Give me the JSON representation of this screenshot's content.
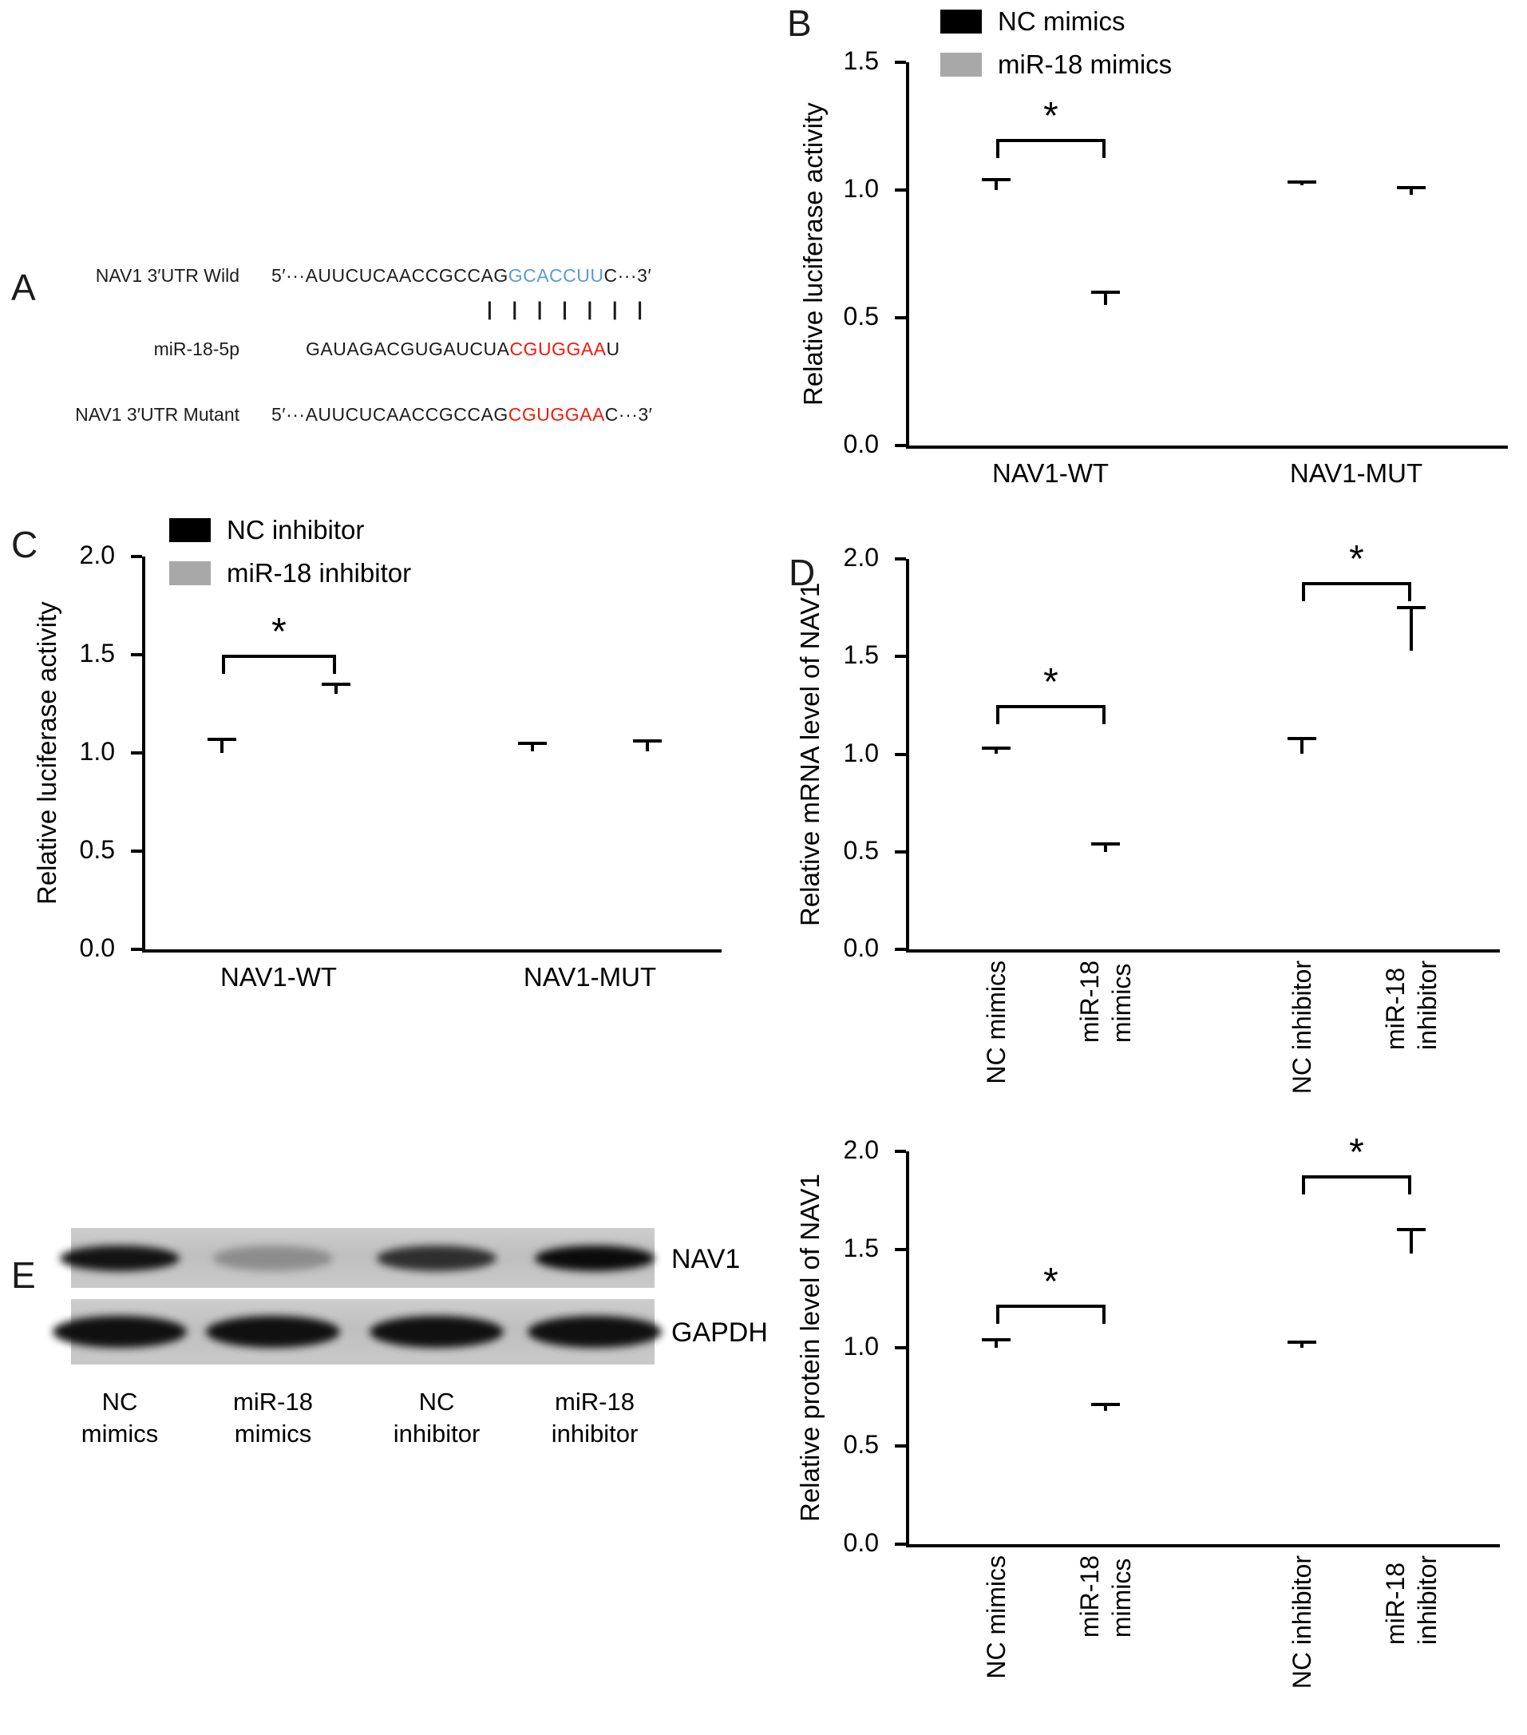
{
  "panel_a": {
    "label": "A",
    "rows": [
      {
        "name": "NAV1 3′UTR Wild",
        "prefix": "5′···AUUCUCAACCGCCAG",
        "highlight": "GCACCUU",
        "suffix": "C···3′",
        "highlight_color": "#5b9bd5"
      },
      {
        "name": "miR-18-5p",
        "prefix": "GAUAGACGUGAUCUA",
        "highlight": "CGUGGAA",
        "suffix": "U",
        "highlight_color": "#f8180a"
      },
      {
        "name": "NAV1 3′UTR Mutant",
        "prefix": "5′···AUUCUCAACCGCCAG",
        "highlight": "CGUGGAA",
        "suffix": "C···3′",
        "highlight_color": "#f8180a"
      }
    ],
    "pairing": "| | | | | | |"
  },
  "panel_e": {
    "label": "E",
    "band_rows": [
      {
        "label": "NAV1",
        "intensities": [
          0.95,
          0.28,
          0.8,
          1.0
        ]
      },
      {
        "label": "GAPDH",
        "intensities": [
          0.97,
          0.97,
          0.97,
          0.97
        ]
      }
    ],
    "lane_labels": [
      "NC\nmimics",
      "miR-18\nmimics",
      "NC\ninhibitor",
      "miR-18\ninhibitor"
    ]
  },
  "chart_data": [
    {
      "panel_label": "B",
      "type": "bar",
      "ylabel": "Relative luciferase activity",
      "ylim": [
        0,
        1.5
      ],
      "ytick_values": [
        0,
        0.5,
        1.0,
        1.5
      ],
      "yticks": [
        "0.0",
        "0.5",
        "1.0",
        "1.5"
      ],
      "categories": [
        "NAV1-WT",
        "NAV1-MUT"
      ],
      "legend": [
        {
          "label": "NC mimics",
          "color": "#000000"
        },
        {
          "label": "miR-18 mimics",
          "color": "#a8a8a8"
        }
      ],
      "legend_position": "top",
      "grid": false,
      "series": [
        {
          "name": "NC mimics",
          "color": "#000000",
          "values": [
            1.0,
            1.02
          ],
          "errors": [
            0.04,
            0.01
          ]
        },
        {
          "name": "miR-18 mimics",
          "color": "#a8a8a8",
          "values": [
            0.55,
            0.98
          ],
          "errors": [
            0.05,
            0.03
          ]
        }
      ],
      "significance": [
        {
          "bars": [
            0,
            1
          ],
          "label": "*",
          "y": 1.2
        }
      ]
    },
    {
      "panel_label": "C",
      "type": "bar",
      "ylabel": "Relative luciferase activity",
      "ylim": [
        0,
        2.0
      ],
      "ytick_values": [
        0,
        0.5,
        1.0,
        1.5,
        2.0
      ],
      "yticks": [
        "0.0",
        "0.5",
        "1.0",
        "1.5",
        "2.0"
      ],
      "categories": [
        "NAV1-WT",
        "NAV1-MUT"
      ],
      "legend": [
        {
          "label": "NC inhibitor",
          "color": "#000000"
        },
        {
          "label": "miR-18 inhibitor",
          "color": "#a8a8a8"
        }
      ],
      "legend_position": "top",
      "grid": false,
      "series": [
        {
          "name": "NC inhibitor",
          "color": "#000000",
          "values": [
            1.0,
            1.01
          ],
          "errors": [
            0.07,
            0.04
          ]
        },
        {
          "name": "miR-18 inhibitor",
          "color": "#a8a8a8",
          "values": [
            1.3,
            1.01
          ],
          "errors": [
            0.05,
            0.05
          ]
        }
      ],
      "significance": [
        {
          "bars": [
            0,
            1
          ],
          "label": "*",
          "y": 1.5
        }
      ]
    },
    {
      "panel_label": "D",
      "type": "bar",
      "ylabel": "Relative mRNA level of NAV1",
      "ylim": [
        0,
        2.0
      ],
      "ytick_values": [
        0,
        0.5,
        1.0,
        1.5,
        2.0
      ],
      "yticks": [
        "0.0",
        "0.5",
        "1.0",
        "1.5",
        "2.0"
      ],
      "categories": [
        "NC mimics",
        "miR-18\nmimics",
        "NC inhibitor",
        "miR-18\ninhibitor"
      ],
      "grid": false,
      "values": [
        1.0,
        0.5,
        1.0,
        1.53
      ],
      "errors": [
        0.03,
        0.04,
        0.08,
        0.22
      ],
      "colors": [
        "#000000",
        "#a8a8a8",
        "#7f7f7f",
        "#d9d9d9"
      ],
      "significance": [
        {
          "bars": [
            0,
            1
          ],
          "label": "*",
          "y": 1.25
        },
        {
          "bars": [
            2,
            3
          ],
          "label": "*",
          "y": 1.88
        }
      ]
    },
    {
      "panel_label": "",
      "type": "bar",
      "ylabel": "Relative protein level of NAV1",
      "ylim": [
        0,
        2.0
      ],
      "ytick_values": [
        0,
        0.5,
        1.0,
        1.5,
        2.0
      ],
      "yticks": [
        "0.0",
        "0.5",
        "1.0",
        "1.5",
        "2.0"
      ],
      "categories": [
        "NC mimics",
        "miR-18\nmimics",
        "NC inhibitor",
        "miR-18\ninhibitor"
      ],
      "grid": false,
      "values": [
        1.0,
        0.68,
        1.0,
        1.48
      ],
      "errors": [
        0.04,
        0.03,
        0.03,
        0.12
      ],
      "colors": [
        "#000000",
        "#a8a8a8",
        "#7f7f7f",
        "#d9d9d9"
      ],
      "significance": [
        {
          "bars": [
            0,
            1
          ],
          "label": "*",
          "y": 1.22
        },
        {
          "bars": [
            2,
            3
          ],
          "label": "*",
          "y": 1.88
        }
      ]
    }
  ]
}
